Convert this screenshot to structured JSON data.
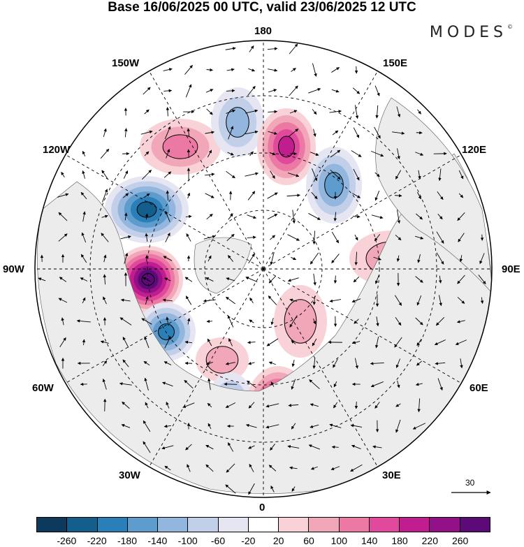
{
  "title": "Base 16/06/2025 00 UTC, valid 23/06/2025 12 UTC",
  "brand": "MODES",
  "brand_mark": "©",
  "longitude_labels": {
    "top": "180",
    "bottom": "0",
    "left": "90W",
    "right": "90E",
    "upper_left_1": "150W",
    "upper_left_2": "120W",
    "lower_left_1": "60W",
    "lower_left_2": "30W",
    "upper_right_1": "150E",
    "upper_right_2": "120E",
    "lower_right_1": "60E",
    "lower_right_2": "30E"
  },
  "vector_reference": {
    "label": "30"
  },
  "colorbar": {
    "colors": [
      "#0d3a5c",
      "#145e8c",
      "#2a7fb8",
      "#5d9ccc",
      "#92b6dd",
      "#c2cfe9",
      "#e6e6f3",
      "#ffffff",
      "#f8d2d6",
      "#f2a7b8",
      "#ec79a4",
      "#e14a9c",
      "#c01e8e",
      "#931089",
      "#5c0a78"
    ],
    "tick_labels": [
      "-260",
      "-220",
      "-180",
      "-140",
      "-100",
      "-60",
      "-20",
      "20",
      "60",
      "100",
      "140",
      "180",
      "220",
      "260"
    ]
  },
  "anomaly_centers": [
    {
      "sign": "positive",
      "level": 3
    },
    {
      "sign": "negative",
      "level": 3
    },
    {
      "sign": "positive",
      "level": 5
    },
    {
      "sign": "negative",
      "level": 4
    },
    {
      "sign": "negative",
      "level": 6
    },
    {
      "sign": "positive",
      "level": 8
    },
    {
      "sign": "negative",
      "level": 5
    },
    {
      "sign": "positive",
      "level": 2
    },
    {
      "sign": "negative",
      "level": 3
    },
    {
      "sign": "positive",
      "level": 6
    },
    {
      "sign": "negative",
      "level": 5
    },
    {
      "sign": "positive",
      "level": 2
    },
    {
      "sign": "positive",
      "level": 2
    },
    {
      "sign": "negative",
      "level": 2
    },
    {
      "sign": "positive",
      "level": 2
    }
  ]
}
